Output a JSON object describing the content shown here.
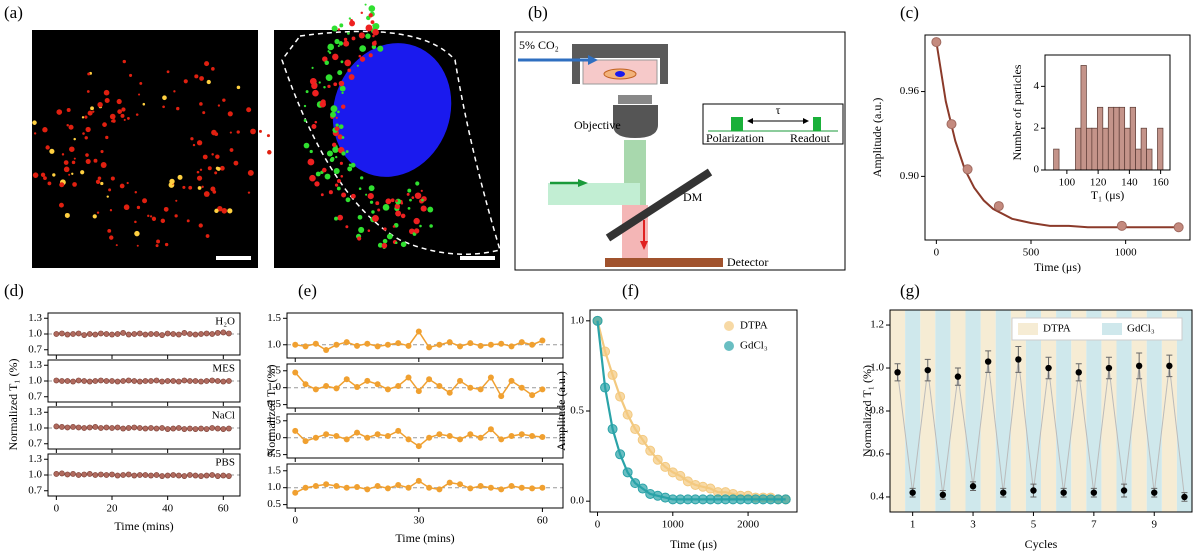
{
  "panel_labels": [
    "(a)",
    "(b)",
    "(c)",
    "(d)",
    "(e)",
    "(f)",
    "(g)"
  ],
  "diagram": {
    "co2": "5% CO₂",
    "objective": "Objective",
    "dm": "DM",
    "tau": "τ",
    "polarization": "Polarization",
    "readout": "Readout",
    "detector": "Detector"
  },
  "chart_data": [
    {
      "type": "scatter",
      "xlabel": "Time (μs)",
      "ylabel": "Amplitude (a.u.)",
      "x": [
        0,
        80,
        165,
        330,
        980,
        1280
      ],
      "values": [
        0.995,
        0.937,
        0.905,
        0.879,
        0.865,
        0.864
      ],
      "color": "#c48a7e",
      "fit": {
        "x": [
          0,
          50,
          100,
          150,
          200,
          250,
          300,
          400,
          500,
          600,
          700,
          800,
          1000,
          1200,
          1300
        ],
        "values": [
          0.995,
          0.953,
          0.925,
          0.905,
          0.892,
          0.883,
          0.877,
          0.87,
          0.867,
          0.865,
          0.865,
          0.864,
          0.864,
          0.864,
          0.864
        ],
        "color": "#8b3a2a"
      },
      "xlim": [
        -60,
        1340
      ],
      "ylim": [
        0.855,
        1.0
      ],
      "xticks": [
        0,
        500,
        1000
      ],
      "yticks": [
        {
          "value": 0.9,
          "label": "0.90"
        },
        0.96
      ],
      "inset": {
        "type": "histogram",
        "xlabel": "T₁ (μs)",
        "ylabel": "Number of particles",
        "color": "#c4948a",
        "bins": [
          91.5,
          95,
          98.5,
          102,
          105.5,
          109,
          112.5,
          116,
          119.5,
          123,
          126.5,
          130,
          133.5,
          137,
          140.5,
          144,
          147.5,
          151,
          154.5,
          158,
          161.5
        ],
        "counts": [
          1,
          0,
          0,
          0,
          2,
          5,
          2,
          2,
          3,
          2,
          3,
          3,
          3,
          2,
          3,
          1,
          2,
          1,
          0,
          2
        ],
        "xlim": [
          86,
          166
        ],
        "ylim": [
          0,
          5.5
        ],
        "xticks": [
          100,
          120,
          140,
          160
        ],
        "yticks": [
          0,
          2,
          4
        ]
      }
    },
    {
      "type": "line",
      "xlabel": "Time (mins)",
      "ylabel": "Normalized T₁ (%)",
      "color": "#b06a5e",
      "refline": 1,
      "x": [
        0,
        2,
        4,
        6,
        8,
        10,
        12,
        14,
        16,
        18,
        20,
        22,
        24,
        26,
        28,
        30,
        32,
        34,
        36,
        38,
        40,
        42,
        44,
        46,
        48,
        50,
        52,
        54,
        56,
        58,
        60,
        62
      ],
      "xlim": [
        -3,
        66
      ],
      "xticks": [
        0,
        20,
        40,
        60
      ],
      "ylim": [
        0.6,
        1.4
      ],
      "yticks": [
        0.7,
        {
          "value": 1,
          "label": "1.0"
        },
        1.3
      ],
      "subplots": [
        {
          "label": "H₂O",
          "values": [
            1.0,
            1.01,
            0.99,
            1.0,
            1.01,
            0.98,
            1.0,
            0.99,
            1.01,
            1.0,
            0.99,
            1.0,
            1.02,
            0.99,
            1.0,
            1.01,
            0.99,
            1.0,
            1.0,
            0.98,
            1.01,
            1.0,
            0.99,
            1.02,
            1.0,
            0.99,
            1.0,
            1.01,
            1.0,
            1.02,
            1.03,
            1.01
          ]
        },
        {
          "label": "MES",
          "values": [
            1.01,
            1.0,
            1.0,
            0.99,
            1.01,
            1.0,
            0.99,
            1.0,
            1.01,
            1.0,
            1.0,
            0.99,
            1.0,
            1.01,
            1.0,
            0.99,
            1.0,
            1.0,
            1.01,
            0.99,
            1.0,
            1.0,
            0.99,
            1.01,
            1.0,
            1.0,
            0.99,
            1.0,
            1.01,
            1.0,
            0.99,
            1.0
          ]
        },
        {
          "label": "NaCl",
          "values": [
            1.03,
            1.02,
            1.01,
            1.02,
            1.01,
            1.0,
            1.01,
            1.02,
            1.0,
            1.01,
            1.0,
            1.01,
            0.99,
            1.0,
            1.01,
            1.0,
            0.99,
            1.0,
            0.99,
            1.0,
            0.98,
            0.99,
            1.0,
            0.98,
            0.99,
            0.98,
            0.99,
            0.98,
            1.0,
            0.99,
            0.98,
            0.99
          ]
        },
        {
          "label": "PBS",
          "values": [
            1.02,
            1.03,
            1.01,
            1.02,
            1.0,
            1.01,
            1.02,
            1.0,
            1.01,
            1.0,
            1.01,
            0.99,
            1.0,
            1.01,
            0.99,
            1.0,
            1.0,
            0.99,
            1.0,
            0.98,
            0.99,
            1.0,
            0.99,
            0.98,
            1.0,
            0.99,
            0.98,
            0.99,
            1.0,
            0.98,
            0.99,
            0.98
          ]
        }
      ]
    },
    {
      "type": "line",
      "xlabel": "Time (mins)",
      "ylabel": "Normalized T₁ (%)",
      "color": "#f0a030",
      "refline": 1,
      "x": [
        0,
        2.5,
        5,
        7.5,
        10,
        12.5,
        15,
        17.5,
        20,
        22.5,
        25,
        27.5,
        30,
        32.5,
        35,
        37.5,
        40,
        42.5,
        45,
        47.5,
        50,
        52.5,
        55,
        57.5,
        60
      ],
      "xlim": [
        -2,
        65
      ],
      "xticks": [
        0,
        30,
        60
      ],
      "subplots": [
        {
          "ylim": [
            0.75,
            1.6
          ],
          "yticks": [
            {
              "value": 1,
              "label": "1.0"
            },
            1.5
          ],
          "values": [
            1.0,
            0.97,
            1.02,
            0.9,
            1.0,
            1.05,
            0.98,
            1.02,
            0.97,
            1.0,
            1.03,
            0.98,
            1.25,
            0.95,
            1.0,
            1.05,
            0.97,
            1.03,
            0.98,
            1.0,
            1.02,
            0.97,
            1.05,
            1.0,
            1.08
          ]
        },
        {
          "ylim": [
            0.4,
            1.7
          ],
          "yticks": [
            0.5,
            {
              "value": 1,
              "label": "1.0"
            },
            1.5
          ],
          "values": [
            1.45,
            1.1,
            0.95,
            1.05,
            0.98,
            1.25,
            1.02,
            1.2,
            1.1,
            0.95,
            1.05,
            1.3,
            0.9,
            1.25,
            1.05,
            0.85,
            1.2,
            1.0,
            0.95,
            1.3,
            0.75,
            1.2,
            1.0,
            0.78,
            0.95
          ]
        },
        {
          "ylim": [
            0.4,
            1.7
          ],
          "yticks": [
            0.5,
            {
              "value": 1,
              "label": "1.0"
            },
            1.5
          ],
          "values": [
            1.2,
            0.9,
            1.0,
            1.1,
            1.05,
            0.95,
            1.15,
            1.0,
            1.1,
            1.05,
            1.2,
            0.95,
            0.75,
            1.0,
            1.1,
            1.05,
            0.95,
            1.1,
            1.0,
            1.25,
            0.95,
            1.05,
            1.1,
            1.05,
            1.02
          ]
        },
        {
          "ylim": [
            0.4,
            1.7
          ],
          "yticks": [
            0.5,
            {
              "value": 1,
              "label": "1.0"
            },
            1.5
          ],
          "values": [
            0.85,
            1.0,
            1.05,
            1.1,
            1.05,
            1.0,
            1.02,
            0.95,
            1.05,
            0.98,
            1.08,
            1.0,
            1.2,
            1.0,
            0.95,
            1.15,
            1.1,
            0.98,
            1.05,
            1.0,
            0.95,
            1.05,
            1.0,
            0.98,
            1.0
          ]
        }
      ]
    },
    {
      "type": "line",
      "xlabel": "Time (μs)",
      "ylabel": "Amplitude (a.u.)",
      "legend": "upper right",
      "x": [
        0,
        100,
        200,
        300,
        400,
        500,
        600,
        700,
        800,
        900,
        1000,
        1100,
        1200,
        1300,
        1400,
        1500,
        1600,
        1700,
        1800,
        1900,
        2000,
        2100,
        2200,
        2300,
        2400,
        2500
      ],
      "series": [
        {
          "name": "DTPA",
          "color": "#f3c97f",
          "values": [
            1,
            0.83,
            0.7,
            0.58,
            0.48,
            0.4,
            0.34,
            0.28,
            0.23,
            0.19,
            0.16,
            0.14,
            0.11,
            0.09,
            0.08,
            0.07,
            0.05,
            0.05,
            0.04,
            0.03,
            0.03,
            0.02,
            0.02,
            0.02,
            0.01,
            0.01
          ]
        },
        {
          "name": "GdCl₃",
          "color": "#2aa3a8",
          "values": [
            1,
            0.63,
            0.4,
            0.26,
            0.16,
            0.1,
            0.07,
            0.04,
            0.03,
            0.02,
            0.01,
            0.01,
            0.01,
            0.01,
            0.01,
            0.01,
            0.01,
            0.01,
            0.01,
            0.01,
            0.01,
            0.01,
            0.01,
            0.01,
            0.01,
            0.01
          ]
        }
      ],
      "xlim": [
        -100,
        2650
      ],
      "ylim": [
        -0.06,
        1.06
      ],
      "xticks": [
        0,
        1000,
        2000
      ],
      "yticks": [
        {
          "value": 0,
          "label": "0.0"
        },
        {
          "value": 0.5,
          "label": "0.5"
        },
        {
          "value": 1,
          "label": "1.0"
        }
      ]
    },
    {
      "type": "scatter",
      "xlabel": "Cycles",
      "ylabel": "Normalized T₁ (%)",
      "legend": "upper center",
      "series": [
        {
          "name": "DTPA",
          "color": "#f6ecd4",
          "x": [
            0.5,
            1.5,
            2.5,
            3.5,
            4.5,
            5.5,
            6.5,
            7.5,
            8.5,
            9.5
          ],
          "values": [
            0.98,
            0.99,
            0.96,
            1.03,
            1.04,
            1.0,
            0.98,
            1.0,
            1.01,
            1.01
          ],
          "errors": [
            0.04,
            0.05,
            0.04,
            0.05,
            0.06,
            0.05,
            0.04,
            0.05,
            0.06,
            0.05
          ]
        },
        {
          "name": "GdCl₃",
          "color": "#cfe8ec",
          "x": [
            1,
            2,
            3,
            4,
            5,
            6,
            7,
            8,
            9,
            10
          ],
          "values": [
            0.42,
            0.41,
            0.45,
            0.42,
            0.43,
            0.42,
            0.42,
            0.43,
            0.42,
            0.4
          ],
          "errors": [
            0.02,
            0.02,
            0.02,
            0.02,
            0.03,
            0.02,
            0.02,
            0.03,
            0.02,
            0.02
          ]
        }
      ],
      "xlim": [
        0.25,
        10.25
      ],
      "ylim": [
        0.33,
        1.27
      ],
      "xticks": [
        1,
        3,
        5,
        7,
        9
      ],
      "yticks": [
        0.4,
        0.6,
        0.8,
        {
          "value": 1,
          "label": "1.0"
        },
        1.2
      ]
    }
  ]
}
